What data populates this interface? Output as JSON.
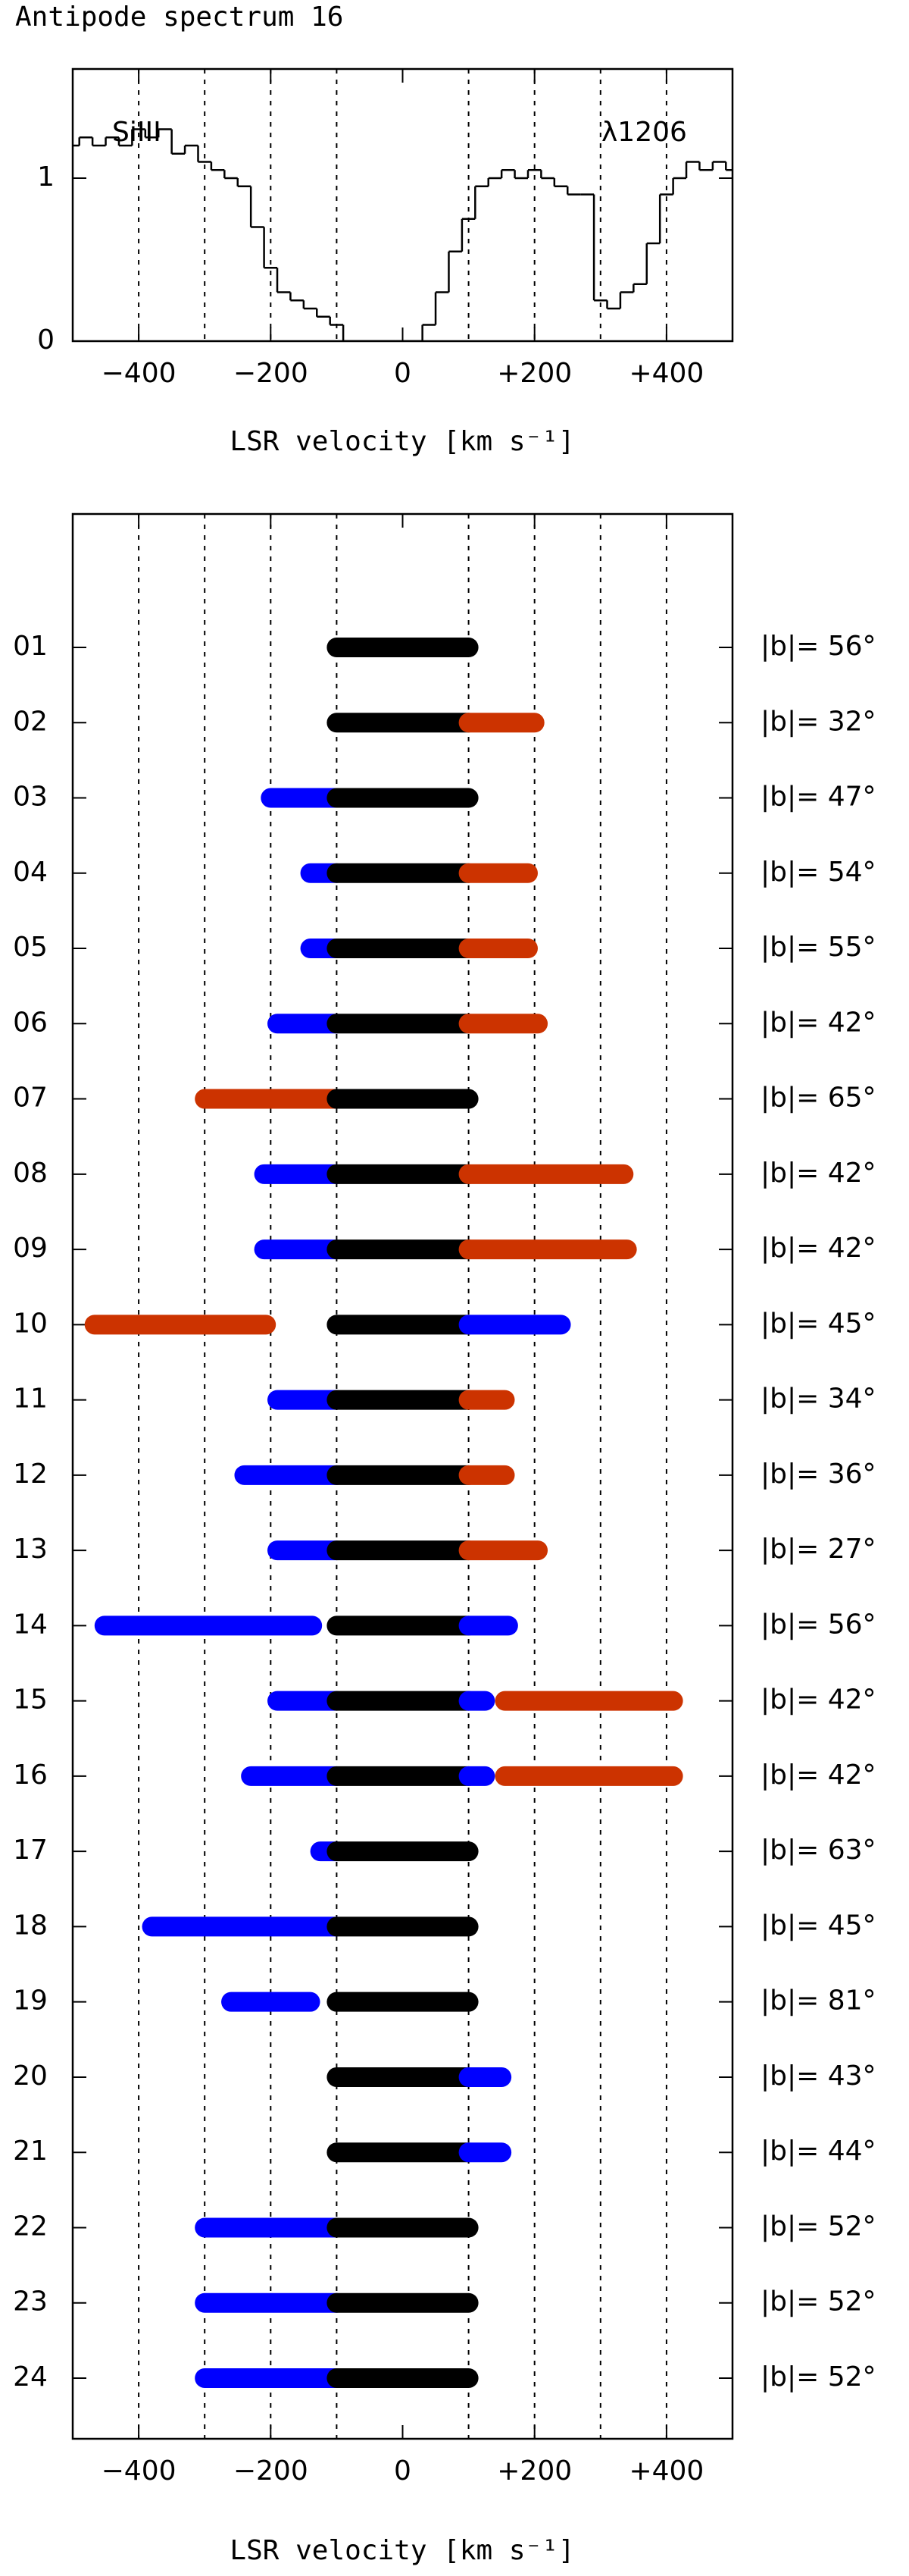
{
  "chart_data": [
    {
      "type": "line",
      "title": "Antipode spectrum 16",
      "xlabel": "LSR velocity [km s⁻¹]",
      "annotations": [
        "SiIII",
        "λ1206"
      ],
      "x": [
        -500,
        -480,
        -460,
        -440,
        -420,
        -400,
        -380,
        -360,
        -340,
        -320,
        -300,
        -280,
        -260,
        -240,
        -220,
        -200,
        -180,
        -160,
        -140,
        -120,
        -100,
        -80,
        -60,
        -40,
        -20,
        0,
        20,
        40,
        60,
        80,
        100,
        120,
        140,
        160,
        180,
        200,
        220,
        240,
        260,
        280,
        300,
        320,
        340,
        360,
        380,
        400,
        420,
        440,
        460,
        480,
        500
      ],
      "values": [
        1.2,
        1.25,
        1.2,
        1.25,
        1.2,
        1.3,
        1.25,
        1.3,
        1.15,
        1.2,
        1.1,
        1.05,
        1.0,
        0.95,
        0.7,
        0.45,
        0.3,
        0.25,
        0.2,
        0.15,
        0.1,
        0,
        0,
        0,
        0,
        0,
        0,
        0.1,
        0.3,
        0.55,
        0.75,
        0.95,
        1.0,
        1.05,
        1.0,
        1.05,
        1.0,
        0.95,
        0.9,
        0.9,
        0.25,
        0.2,
        0.3,
        0.35,
        0.6,
        0.9,
        1.0,
        1.1,
        1.05,
        1.1,
        1.05
      ],
      "color": "#000000",
      "xlim": [
        -500,
        500
      ],
      "ylim": [
        0,
        1.67
      ],
      "xticks": [
        {
          "value": -400,
          "label": "−400"
        },
        {
          "value": -200,
          "label": "−200"
        },
        0,
        {
          "value": 200,
          "label": "+200"
        },
        {
          "value": 400,
          "label": "+400"
        }
      ],
      "yticks": [
        0,
        1
      ],
      "gridlines": [
        -400,
        -300,
        -200,
        -100,
        100,
        200,
        300,
        400
      ]
    },
    {
      "type": "range",
      "xlabel": "LSR velocity [km s⁻¹]",
      "categories": [
        "01",
        "02",
        "03",
        "04",
        "05",
        "06",
        "07",
        "08",
        "09",
        "10",
        "11",
        "12",
        "13",
        "14",
        "15",
        "16",
        "17",
        "18",
        "19",
        "20",
        "21",
        "22",
        "23",
        "24"
      ],
      "right_labels": [
        "|b|= 56°",
        "|b|= 32°",
        "|b|= 47°",
        "|b|= 54°",
        "|b|= 55°",
        "|b|= 42°",
        "|b|= 65°",
        "|b|= 42°",
        "|b|= 42°",
        "|b|= 45°",
        "|b|= 34°",
        "|b|= 36°",
        "|b|= 27°",
        "|b|= 56°",
        "|b|= 42°",
        "|b|= 42°",
        "|b|= 63°",
        "|b|= 45°",
        "|b|= 81°",
        "|b|= 43°",
        "|b|= 44°",
        "|b|= 52°",
        "|b|= 52°",
        "|b|= 52°"
      ],
      "ranges": [
        [
          {
            "from": -100,
            "to": 100,
            "color": "#000000"
          }
        ],
        [
          {
            "from": -100,
            "to": 100,
            "color": "#000000"
          },
          {
            "from": 100,
            "to": 200,
            "color": "#cc3300"
          }
        ],
        [
          {
            "from": -200,
            "to": -100,
            "color": "#0000ff"
          },
          {
            "from": -100,
            "to": 100,
            "color": "#000000"
          }
        ],
        [
          {
            "from": -140,
            "to": -100,
            "color": "#0000ff"
          },
          {
            "from": -100,
            "to": 100,
            "color": "#000000"
          },
          {
            "from": 100,
            "to": 190,
            "color": "#cc3300"
          }
        ],
        [
          {
            "from": -140,
            "to": -100,
            "color": "#0000ff"
          },
          {
            "from": -100,
            "to": 100,
            "color": "#000000"
          },
          {
            "from": 100,
            "to": 190,
            "color": "#cc3300"
          }
        ],
        [
          {
            "from": -190,
            "to": -100,
            "color": "#0000ff"
          },
          {
            "from": -100,
            "to": 100,
            "color": "#000000"
          },
          {
            "from": 100,
            "to": 205,
            "color": "#cc3300"
          }
        ],
        [
          {
            "from": -300,
            "to": -100,
            "color": "#cc3300"
          },
          {
            "from": -100,
            "to": 100,
            "color": "#000000"
          }
        ],
        [
          {
            "from": -210,
            "to": -100,
            "color": "#0000ff"
          },
          {
            "from": -100,
            "to": 100,
            "color": "#000000"
          },
          {
            "from": 100,
            "to": 335,
            "color": "#cc3300"
          }
        ],
        [
          {
            "from": -210,
            "to": -100,
            "color": "#0000ff"
          },
          {
            "from": -100,
            "to": 100,
            "color": "#000000"
          },
          {
            "from": 100,
            "to": 340,
            "color": "#cc3300"
          }
        ],
        [
          {
            "from": -467,
            "to": -207,
            "color": "#cc3300"
          },
          {
            "from": -100,
            "to": 100,
            "color": "#000000"
          },
          {
            "from": 100,
            "to": 240,
            "color": "#0000ff"
          }
        ],
        [
          {
            "from": -190,
            "to": -100,
            "color": "#0000ff"
          },
          {
            "from": -100,
            "to": 100,
            "color": "#000000"
          },
          {
            "from": 100,
            "to": 155,
            "color": "#cc3300"
          }
        ],
        [
          {
            "from": -240,
            "to": -100,
            "color": "#0000ff"
          },
          {
            "from": -100,
            "to": 100,
            "color": "#000000"
          },
          {
            "from": 100,
            "to": 155,
            "color": "#cc3300"
          }
        ],
        [
          {
            "from": -190,
            "to": -100,
            "color": "#0000ff"
          },
          {
            "from": -100,
            "to": 100,
            "color": "#000000"
          },
          {
            "from": 100,
            "to": 205,
            "color": "#cc3300"
          }
        ],
        [
          {
            "from": -452,
            "to": -137,
            "color": "#0000ff"
          },
          {
            "from": -100,
            "to": 100,
            "color": "#000000"
          },
          {
            "from": 100,
            "to": 160,
            "color": "#0000ff"
          }
        ],
        [
          {
            "from": -190,
            "to": -100,
            "color": "#0000ff"
          },
          {
            "from": -100,
            "to": 100,
            "color": "#000000"
          },
          {
            "from": 100,
            "to": 125,
            "color": "#0000ff"
          },
          {
            "from": 155,
            "to": 410,
            "color": "#cc3300"
          }
        ],
        [
          {
            "from": -230,
            "to": -100,
            "color": "#0000ff"
          },
          {
            "from": -100,
            "to": 100,
            "color": "#000000"
          },
          {
            "from": 100,
            "to": 125,
            "color": "#0000ff"
          },
          {
            "from": 155,
            "to": 410,
            "color": "#cc3300"
          }
        ],
        [
          {
            "from": -125,
            "to": -100,
            "color": "#0000ff"
          },
          {
            "from": -100,
            "to": 100,
            "color": "#000000"
          }
        ],
        [
          {
            "from": -380,
            "to": -100,
            "color": "#0000ff"
          },
          {
            "from": -100,
            "to": 100,
            "color": "#000000"
          }
        ],
        [
          {
            "from": -260,
            "to": -140,
            "color": "#0000ff"
          },
          {
            "from": -100,
            "to": 100,
            "color": "#000000"
          }
        ],
        [
          {
            "from": -100,
            "to": 100,
            "color": "#000000"
          },
          {
            "from": 100,
            "to": 150,
            "color": "#0000ff"
          }
        ],
        [
          {
            "from": -100,
            "to": 100,
            "color": "#000000"
          },
          {
            "from": 100,
            "to": 150,
            "color": "#0000ff"
          }
        ],
        [
          {
            "from": -300,
            "to": -100,
            "color": "#0000ff"
          },
          {
            "from": -100,
            "to": 100,
            "color": "#000000"
          }
        ],
        [
          {
            "from": -300,
            "to": -100,
            "color": "#0000ff"
          },
          {
            "from": -100,
            "to": 100,
            "color": "#000000"
          }
        ],
        [
          {
            "from": -300,
            "to": -100,
            "color": "#0000ff"
          },
          {
            "from": -100,
            "to": 100,
            "color": "#000000"
          }
        ]
      ],
      "xlim": [
        -500,
        500
      ],
      "xticks": [
        {
          "value": -400,
          "label": "−400"
        },
        {
          "value": -200,
          "label": "−200"
        },
        0,
        {
          "value": 200,
          "label": "+200"
        },
        {
          "value": 400,
          "label": "+400"
        }
      ],
      "gridlines": [
        -400,
        -300,
        -200,
        -100,
        100,
        200,
        300,
        400
      ]
    }
  ]
}
